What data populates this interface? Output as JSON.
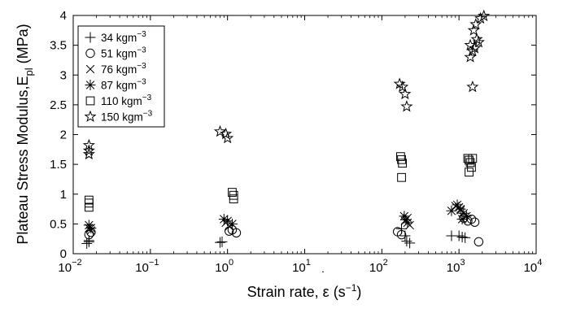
{
  "chart_data": {
    "type": "scatter",
    "x_scale": "log",
    "xlim": [
      0.01,
      10000
    ],
    "ylim": [
      0,
      4
    ],
    "x_ticks": [
      0.01,
      0.1,
      1,
      10,
      100,
      1000,
      10000
    ],
    "x_tick_labels": [
      {
        "base": "10",
        "exp": "−2"
      },
      {
        "base": "10",
        "exp": "−1"
      },
      {
        "base": "10",
        "exp": "0"
      },
      {
        "base": "10",
        "exp": "1"
      },
      {
        "base": "10",
        "exp": "2"
      },
      {
        "base": "10",
        "exp": "3"
      },
      {
        "base": "10",
        "exp": "4"
      }
    ],
    "y_ticks": [
      0,
      0.5,
      1,
      1.5,
      2,
      2.5,
      3,
      3.5,
      4
    ],
    "y_tick_labels": [
      "0",
      "0.5",
      "1",
      "1.5",
      "2",
      "2.5",
      "3",
      "3.5",
      "4"
    ],
    "xlabel": {
      "pre": "Strain rate, ",
      "symbol": "ε",
      "dot": "˙",
      "post1": " (s",
      "exp": "−1",
      "post2": ")"
    },
    "ylabel": {
      "main": "Plateau Stress Modulus,E",
      "sub": "pl",
      "unit": " (MPa)"
    },
    "grid": false,
    "legend_position": "top-left",
    "series": [
      {
        "name": "34 kgm",
        "name_exp": "−3",
        "marker": "plus",
        "x": [
          0.015,
          0.016,
          0.016,
          0.8,
          0.85,
          180,
          200,
          210,
          230,
          800,
          1000,
          1100,
          1200
        ],
        "y": [
          0.17,
          0.2,
          0.22,
          0.19,
          0.2,
          0.42,
          0.3,
          0.21,
          0.18,
          0.3,
          0.3,
          0.28,
          0.27
        ]
      },
      {
        "name": "51 kgm",
        "name_exp": "−3",
        "marker": "circle",
        "x": [
          0.016,
          0.017,
          1.05,
          1.15,
          1.3,
          160,
          180,
          1150,
          1300,
          1450,
          1600,
          1800
        ],
        "y": [
          0.32,
          0.36,
          0.38,
          0.4,
          0.35,
          0.37,
          0.32,
          0.6,
          0.55,
          0.58,
          0.53,
          0.2
        ]
      },
      {
        "name": "76 kgm",
        "name_exp": "−3",
        "marker": "x",
        "x": [
          0.016,
          0.017,
          0.95,
          1.05,
          200,
          215,
          230,
          900,
          1000,
          1050
        ],
        "y": [
          0.43,
          0.39,
          0.52,
          0.46,
          0.55,
          0.6,
          0.48,
          0.8,
          0.78,
          0.73
        ]
      },
      {
        "name": "87 kgm",
        "name_exp": "−3",
        "marker": "star",
        "x": [
          0.016,
          0.017,
          0.9,
          1.0,
          1.15,
          195,
          205,
          215,
          800,
          950,
          1050,
          1150,
          1250,
          1100
        ],
        "y": [
          0.48,
          0.43,
          0.58,
          0.55,
          0.5,
          0.63,
          0.57,
          0.52,
          0.72,
          0.82,
          0.75,
          0.68,
          0.63,
          0.58
        ]
      },
      {
        "name": "110 kgm",
        "name_exp": "−3",
        "marker": "square",
        "x": [
          0.016,
          0.016,
          0.016,
          1.15,
          1.2,
          1.2,
          175,
          180,
          185,
          180,
          1300,
          1350,
          1400,
          1500,
          1450,
          1350
        ],
        "y": [
          0.9,
          0.85,
          0.78,
          1.03,
          0.98,
          0.92,
          1.63,
          1.58,
          1.52,
          1.28,
          1.6,
          1.57,
          1.53,
          1.6,
          1.45,
          1.37
        ]
      },
      {
        "name": "150 kgm",
        "name_exp": "−3",
        "marker": "pentagram",
        "x": [
          0.016,
          0.016,
          0.016,
          0.8,
          0.95,
          1.0,
          170,
          185,
          200,
          210,
          1400,
          1500,
          1600,
          1700,
          1800,
          1550,
          1650,
          1500,
          1400,
          1900,
          2100
        ],
        "y": [
          1.82,
          1.73,
          1.67,
          2.05,
          2.01,
          1.94,
          2.85,
          2.8,
          2.68,
          2.47,
          3.3,
          3.4,
          3.45,
          3.6,
          3.55,
          3.75,
          3.85,
          2.8,
          3.5,
          3.95,
          3.99
        ]
      }
    ]
  }
}
